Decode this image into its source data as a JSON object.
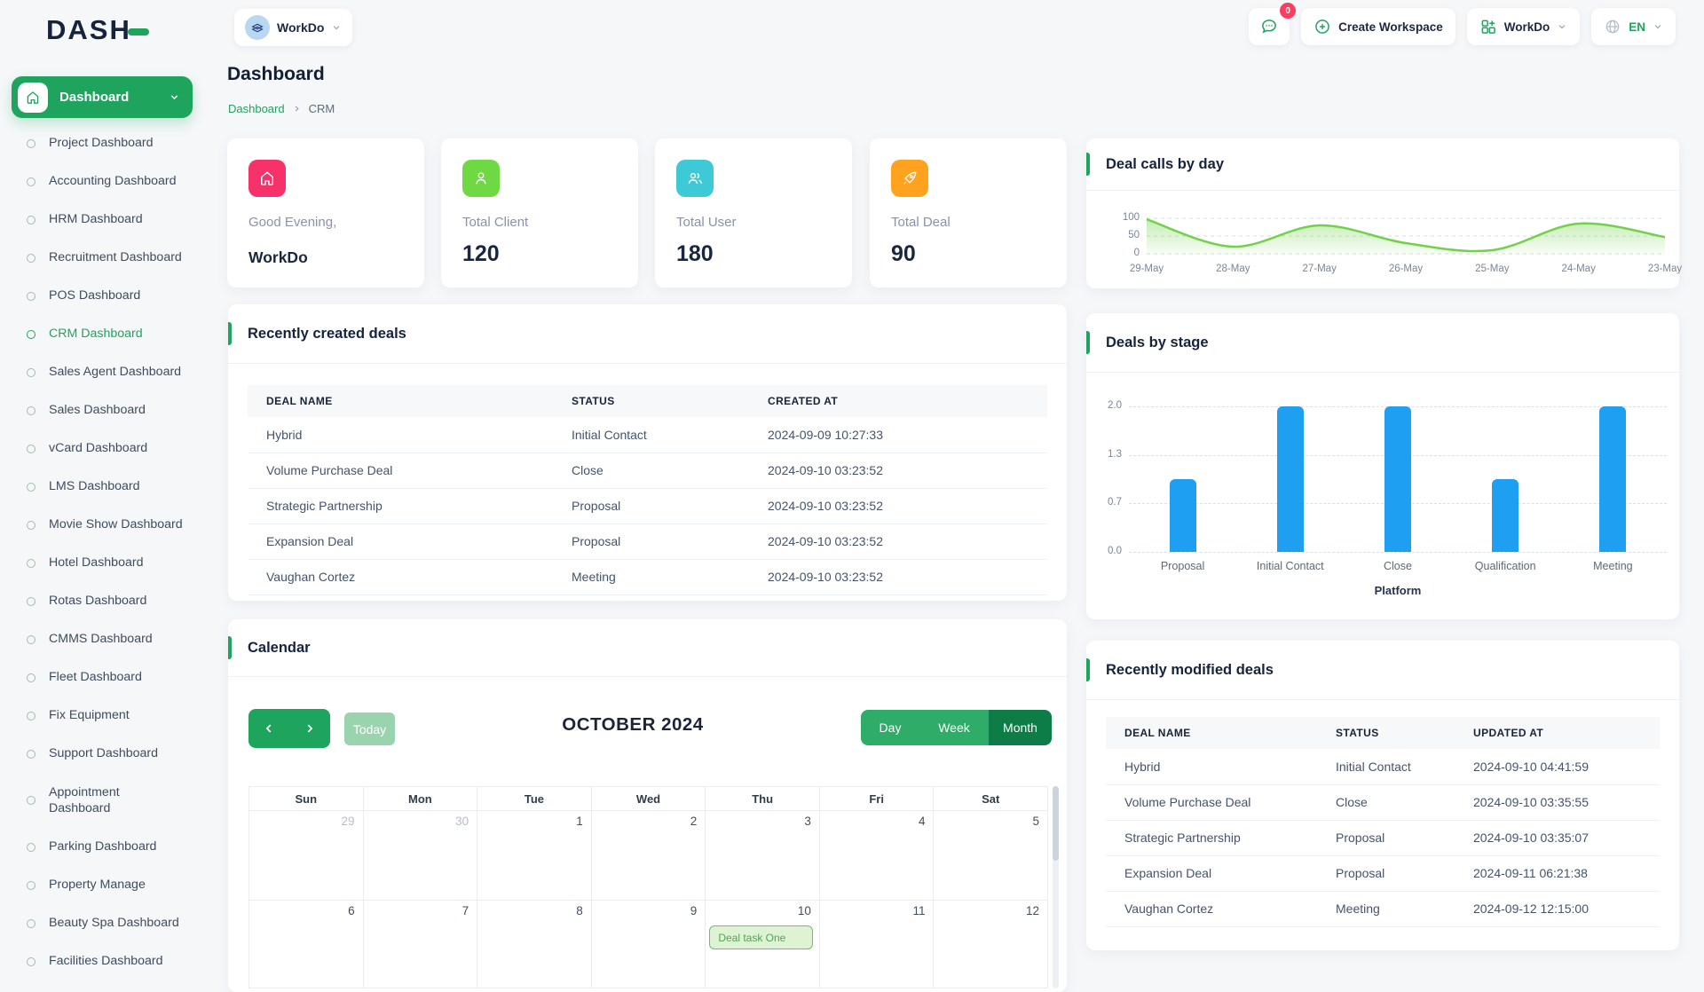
{
  "brand": {
    "logo_text": "DASH"
  },
  "topbar": {
    "workspace_selector": {
      "label": "WorkDo"
    },
    "messages_badge": "0",
    "create_workspace_label": "Create Workspace",
    "workspace_menu_label": "WorkDo",
    "language_code": "EN"
  },
  "sidebar": {
    "root_label": "Dashboard",
    "items": [
      {
        "label": "Project Dashboard"
      },
      {
        "label": "Accounting Dashboard"
      },
      {
        "label": "HRM Dashboard"
      },
      {
        "label": "Recruitment Dashboard"
      },
      {
        "label": "POS Dashboard"
      },
      {
        "label": "CRM Dashboard",
        "active": true
      },
      {
        "label": "Sales Agent Dashboard"
      },
      {
        "label": "Sales Dashboard"
      },
      {
        "label": "vCard Dashboard"
      },
      {
        "label": "LMS Dashboard"
      },
      {
        "label": "Movie Show Dashboard"
      },
      {
        "label": "Hotel Dashboard"
      },
      {
        "label": "Rotas Dashboard"
      },
      {
        "label": "CMMS Dashboard"
      },
      {
        "label": "Fleet Dashboard"
      },
      {
        "label": "Fix Equipment"
      },
      {
        "label": "Support Dashboard"
      },
      {
        "label": "Appointment Dashboard",
        "wrap": true
      },
      {
        "label": "Parking Dashboard"
      },
      {
        "label": "Property Manage"
      },
      {
        "label": "Beauty Spa Dashboard"
      },
      {
        "label": "Facilities Dashboard"
      }
    ]
  },
  "page": {
    "title": "Dashboard",
    "breadcrumb": [
      "Dashboard",
      "CRM"
    ]
  },
  "stat_cards": [
    {
      "icon": "home-icon",
      "color": "#F7316A",
      "label": "Good Evening,",
      "value": "WorkDo"
    },
    {
      "icon": "user-icon",
      "color": "#6FD943",
      "label": "Total Client",
      "value": "120"
    },
    {
      "icon": "users-icon",
      "color": "#3EC9D6",
      "label": "Total User",
      "value": "180"
    },
    {
      "icon": "rocket-icon",
      "color": "#FFA21D",
      "label": "Total Deal",
      "value": "90"
    }
  ],
  "chart_data": [
    {
      "id": "deal_calls_by_day",
      "type": "area",
      "title": "Deal calls by day",
      "x": [
        "29-May",
        "28-May",
        "27-May",
        "26-May",
        "25-May",
        "24-May",
        "23-May"
      ],
      "values": [
        97,
        20,
        80,
        30,
        10,
        85,
        47
      ],
      "ylim": [
        0,
        100
      ],
      "yticks": [
        100,
        50,
        0
      ],
      "ytick_labels": [
        "100",
        "50",
        "0"
      ],
      "line_color": "#72D14B",
      "grid": "dashed-horizontal",
      "legend": "none"
    },
    {
      "id": "deals_by_stage",
      "type": "bar",
      "title": "Deals by stage",
      "categories": [
        "Proposal",
        "Initial Contact",
        "Close",
        "Qualification",
        "Meeting"
      ],
      "values": [
        1,
        2,
        2,
        1,
        2
      ],
      "ylim": [
        0,
        2
      ],
      "yticks": [
        2,
        1.3333,
        0.6667,
        0
      ],
      "ytick_labels": [
        "2.0",
        "1.3",
        "0.7",
        "0.0"
      ],
      "xlabel": "Platform",
      "bar_color": "#1E9FF2",
      "grid": "dashed-horizontal",
      "legend": "none"
    }
  ],
  "tables": {
    "created": {
      "title": "Recently created deals",
      "columns": [
        "DEAL NAME",
        "STATUS",
        "CREATED AT"
      ],
      "rows": [
        [
          "Hybrid",
          "Initial Contact",
          "2024-09-09 10:27:33"
        ],
        [
          "Volume Purchase Deal",
          "Close",
          "2024-09-10 03:23:52"
        ],
        [
          "Strategic Partnership",
          "Proposal",
          "2024-09-10 03:23:52"
        ],
        [
          "Expansion Deal",
          "Proposal",
          "2024-09-10 03:23:52"
        ],
        [
          "Vaughan Cortez",
          "Meeting",
          "2024-09-10 03:23:52"
        ]
      ]
    },
    "modified": {
      "title": "Recently modified deals",
      "columns": [
        "DEAL NAME",
        "STATUS",
        "UPDATED AT"
      ],
      "rows": [
        [
          "Hybrid",
          "Initial Contact",
          "2024-09-10 04:41:59"
        ],
        [
          "Volume Purchase Deal",
          "Close",
          "2024-09-10 03:35:55"
        ],
        [
          "Strategic Partnership",
          "Proposal",
          "2024-09-10 03:35:07"
        ],
        [
          "Expansion Deal",
          "Proposal",
          "2024-09-11 06:21:38"
        ],
        [
          "Vaughan Cortez",
          "Meeting",
          "2024-09-12 12:15:00"
        ]
      ]
    }
  },
  "calendar": {
    "title": "Calendar",
    "toolbar": {
      "today_label": "Today",
      "month_title": "OCTOBER 2024",
      "views": [
        "Day",
        "Week",
        "Month"
      ],
      "active_view": "Month"
    },
    "weekdays": [
      "Sun",
      "Mon",
      "Tue",
      "Wed",
      "Thu",
      "Fri",
      "Sat"
    ],
    "weeks": [
      [
        {
          "day": "29",
          "muted": true
        },
        {
          "day": "30",
          "muted": true
        },
        {
          "day": "1"
        },
        {
          "day": "2"
        },
        {
          "day": "3"
        },
        {
          "day": "4"
        },
        {
          "day": "5"
        }
      ],
      [
        {
          "day": "6"
        },
        {
          "day": "7"
        },
        {
          "day": "8"
        },
        {
          "day": "9"
        },
        {
          "day": "10",
          "event": "Deal task One"
        },
        {
          "day": "11"
        },
        {
          "day": "12"
        }
      ]
    ]
  },
  "colors": {
    "primary_green": "#1FA45D",
    "dark_green_active": "#0D7C46",
    "mid_green": "#2EAC68",
    "pale_green_today": "#99D4AE",
    "link_green": "#21A35F",
    "badge_red": "#FD3C60",
    "bar_blue": "#1E9FF2",
    "area_line_green": "#72D14B",
    "stat_pink": "#F7316A",
    "stat_green": "#6FD943",
    "stat_teal": "#3EC9D6",
    "stat_orange": "#FFA21D"
  }
}
